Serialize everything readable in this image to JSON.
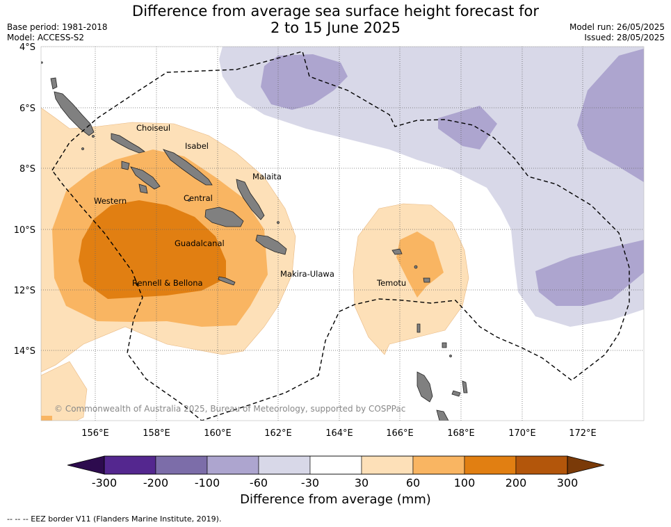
{
  "header": {
    "title_line1": "Difference from average sea surface height forecast for",
    "title_line2": "2 to 15 June 2025",
    "base_period": "Base period: 1981-2018",
    "model": "Model: ACCESS-S2",
    "model_run": "Model run: 26/05/2025",
    "issued": "Issued: 28/05/2025"
  },
  "map": {
    "lat_labels": [
      "4°S",
      "6°S",
      "8°S",
      "10°S",
      "12°S",
      "14°S"
    ],
    "lon_labels": [
      "156°E",
      "158°E",
      "160°E",
      "162°E",
      "164°E",
      "166°E",
      "168°E",
      "170°E",
      "172°E"
    ],
    "places": [
      "Choiseul",
      "Isabel",
      "Malaita",
      "Western",
      "Central",
      "Guadalcanal",
      "Makira-Ulawa",
      "Rennell & Bellona",
      "Temotu"
    ],
    "copyright": "© Commonwealth of Australia 2025, Bureau of Meteorology, supported by COSPPac"
  },
  "colorbar": {
    "title": "Difference from average (mm)",
    "ticks": [
      "-300",
      "-200",
      "-100",
      "-60",
      "-30",
      "30",
      "60",
      "100",
      "200",
      "300"
    ],
    "colors": [
      "#54278f",
      "#7c6da9",
      "#ada5cf",
      "#d8d8e8",
      "#ffffff",
      "#fde0b8",
      "#f9b562",
      "#e17f12",
      "#b3560b"
    ],
    "under_color": "#2d0b4e",
    "over_color": "#7a3a08"
  },
  "footer": {
    "legend": "--  --  -- EEZ border V11 (Flanders Marine Institute, 2019)."
  }
}
